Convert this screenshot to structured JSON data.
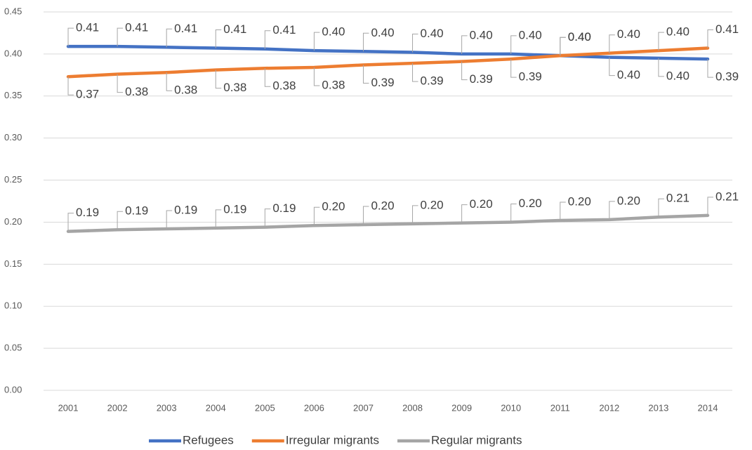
{
  "chart_data": {
    "type": "line",
    "categories": [
      "2001",
      "2002",
      "2003",
      "2004",
      "2005",
      "2006",
      "2007",
      "2008",
      "2009",
      "2010",
      "2011",
      "2012",
      "2013",
      "2014"
    ],
    "series": [
      {
        "name": "Refugees",
        "color": "#4472c4",
        "values": [
          0.409,
          0.409,
          0.408,
          0.407,
          0.406,
          0.404,
          0.403,
          0.402,
          0.4,
          0.4,
          0.398,
          0.396,
          0.395,
          0.394
        ],
        "value_labels": [
          "0.41",
          "0.41",
          "0.41",
          "0.41",
          "0.41",
          "0.40",
          "0.40",
          "0.40",
          "0.40",
          "0.40",
          "0.40",
          "0.40",
          "0.40",
          "0.39"
        ]
      },
      {
        "name": "Irregular migrants",
        "color": "#ed7d31",
        "values": [
          0.373,
          0.376,
          0.378,
          0.381,
          0.383,
          0.384,
          0.387,
          0.389,
          0.391,
          0.394,
          0.398,
          0.401,
          0.404,
          0.407
        ],
        "value_labels": [
          "0.37",
          "0.38",
          "0.38",
          "0.38",
          "0.38",
          "0.38",
          "0.39",
          "0.39",
          "0.39",
          "0.39",
          "0.40",
          "0.40",
          "0.40",
          "0.41"
        ]
      },
      {
        "name": "Regular migrants",
        "color": "#a5a5a5",
        "values": [
          0.189,
          0.191,
          0.192,
          0.193,
          0.194,
          0.196,
          0.197,
          0.198,
          0.199,
          0.2,
          0.202,
          0.203,
          0.206,
          0.208
        ],
        "value_labels": [
          "0.19",
          "0.19",
          "0.19",
          "0.19",
          "0.19",
          "0.20",
          "0.20",
          "0.20",
          "0.20",
          "0.20",
          "0.20",
          "0.20",
          "0.21",
          "0.21"
        ]
      }
    ],
    "ylim": [
      0,
      0.45
    ],
    "yticks": [
      {
        "value": 0,
        "label": "0.00"
      },
      0.05,
      {
        "value": 0.1,
        "label": "0.10"
      },
      0.15,
      {
        "value": 0.2,
        "label": "0.20"
      },
      0.25,
      {
        "value": 0.3,
        "label": "0.30"
      },
      0.35,
      {
        "value": 0.4,
        "label": "0.40"
      },
      0.45
    ],
    "grid": true,
    "legend": "bottom"
  }
}
